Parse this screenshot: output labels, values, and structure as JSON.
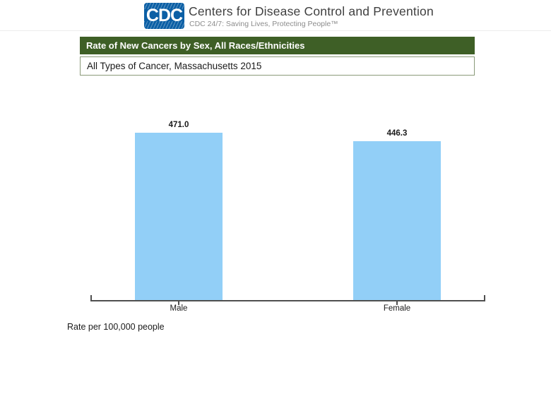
{
  "header": {
    "logo": "CDC",
    "logo_color": "#0b5fa5",
    "org_name": "Centers for Disease Control and Prevention",
    "tagline": "CDC 24/7: Saving Lives, Protecting People™"
  },
  "title_bar": {
    "label": "Rate of New Cancers by Sex, All Races/Ethnicities",
    "bg_color": "#3e5f26",
    "text_color": "#ffffff"
  },
  "subtitle_box": {
    "label": "All Types of Cancer, Massachusetts 2015",
    "border_color": "#8a9a79"
  },
  "footnote": "Rate per 100,000 people",
  "chart_data": {
    "type": "bar",
    "categories": [
      "Male",
      "Female"
    ],
    "values": [
      471.0,
      446.3
    ],
    "value_labels": [
      "471.0",
      "446.3"
    ],
    "title": "Rate of New Cancers by Sex, All Races/Ethnicities",
    "subtitle": "All Types of Cancer, Massachusetts 2015",
    "xlabel": "",
    "ylabel": "Rate per 100,000 people",
    "ylim": [
      0,
      471
    ],
    "grid": false,
    "legend": false,
    "bar_color": "#92cff7",
    "axis_color": "#4f4f4f"
  }
}
